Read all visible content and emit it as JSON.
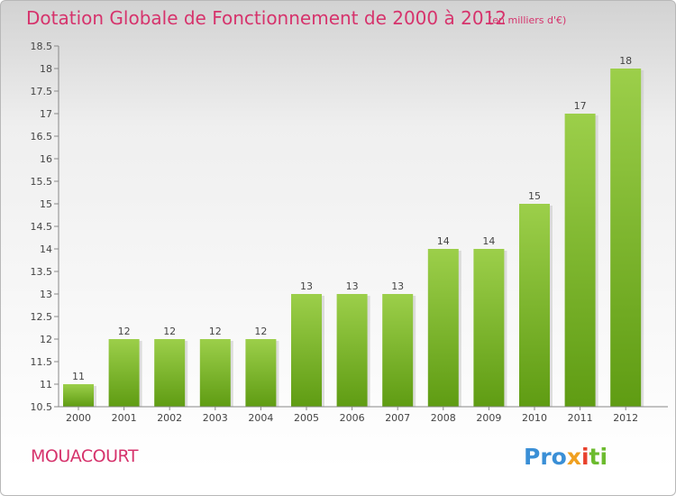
{
  "header": {
    "title": "Dotation Globale de Fonctionnement de 2000 à 2012",
    "subtitle": "(en milliers d'€)"
  },
  "footer": {
    "commune": "MOUACOURT",
    "logo": "Proxiti"
  },
  "colors": {
    "accent": "#d6336c",
    "bar_light": "#9ccf4a",
    "bar_dark": "#5f9c13"
  },
  "chart_data": {
    "type": "bar",
    "title": "Dotation Globale de Fonctionnement de 2000 à 2012",
    "subtitle": "(en milliers d'€)",
    "categories": [
      "2000",
      "2001",
      "2002",
      "2003",
      "2004",
      "2005",
      "2006",
      "2007",
      "2008",
      "2009",
      "2010",
      "2011",
      "2012"
    ],
    "values": [
      11,
      12,
      12,
      12,
      12,
      13,
      13,
      13,
      14,
      14,
      15,
      17,
      18
    ],
    "ylim": [
      10.5,
      18.5
    ],
    "yticks": [
      "10.5",
      "11",
      "11.5",
      "12",
      "12.5",
      "13",
      "13.5",
      "14",
      "14.5",
      "15",
      "15.5",
      "16",
      "16.5",
      "17",
      "17.5",
      "18",
      "18.5"
    ],
    "xlabel": "",
    "ylabel": "",
    "grid": false,
    "legend": "none"
  }
}
